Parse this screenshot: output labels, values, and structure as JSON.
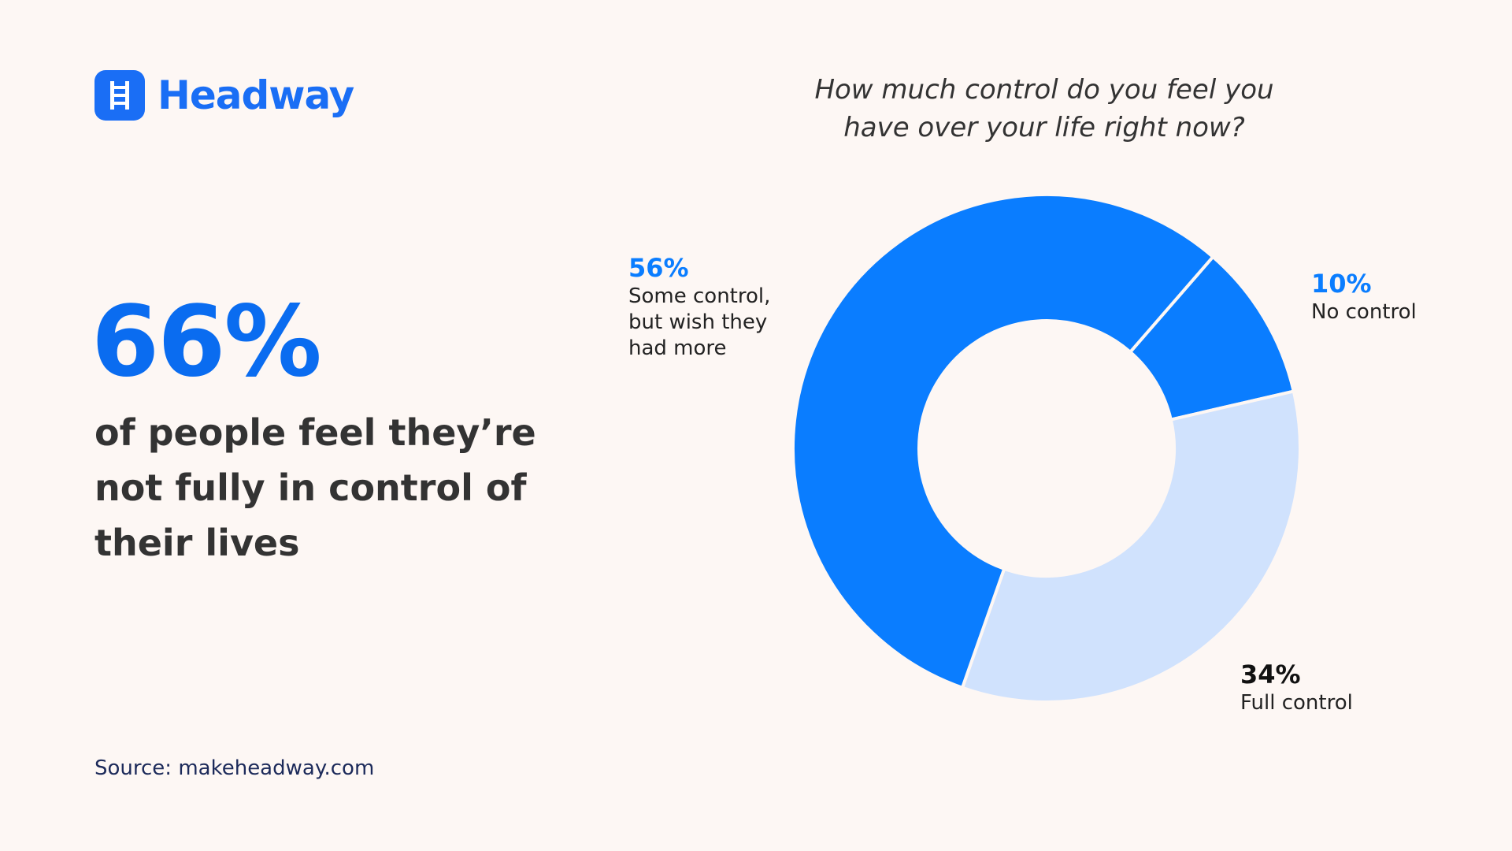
{
  "brand": "Headway",
  "stat": "66%",
  "statement": "of people feel they’re not fully in control of their lives",
  "source": "Source: makeheadway.com",
  "chart_data": {
    "type": "donut",
    "title": "How much control do you feel you have over your life right now?",
    "categories": [
      "No control",
      "Full control",
      "Some control, but wish they had more"
    ],
    "values": [
      10,
      34,
      56
    ],
    "value_labels": [
      "10%",
      "34%",
      "56%"
    ],
    "colors": [
      "#0a7dff",
      "#d0e2fd",
      "#0a7dff"
    ],
    "value_label_colors": [
      "#0a7dff",
      "#111111",
      "#0a7dff"
    ]
  }
}
